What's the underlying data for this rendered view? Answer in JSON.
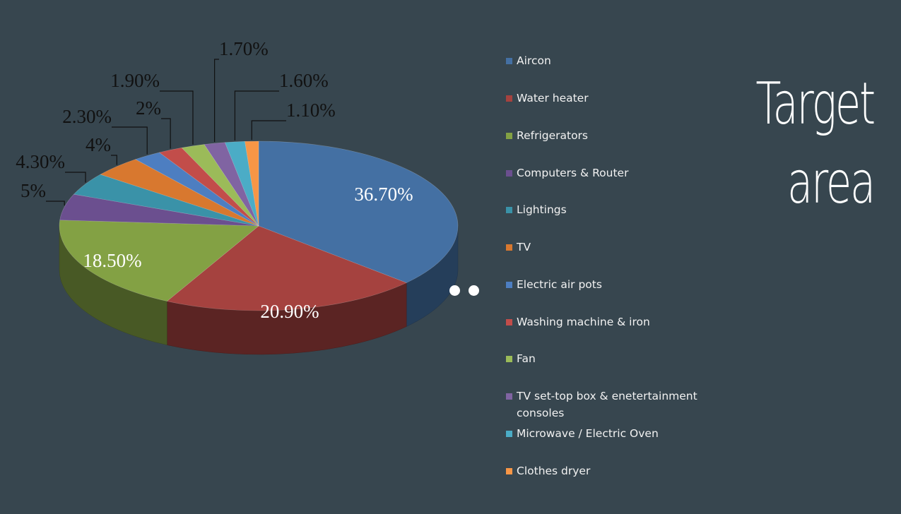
{
  "page": {
    "title": "Target area"
  },
  "chart_data": {
    "type": "pie",
    "title": "",
    "style": "3d-exploded",
    "legend_position": "right",
    "series": [
      {
        "label": "Aircon",
        "value": 36.7,
        "data_label": "36.70%",
        "color": "#4470a3"
      },
      {
        "label": "Water heater",
        "value": 20.9,
        "data_label": "20.90%",
        "color": "#a5423f"
      },
      {
        "label": "Refrigerators",
        "value": 18.5,
        "data_label": "18.50%",
        "color": "#83a144"
      },
      {
        "label": "Computers & Router",
        "value": 5,
        "data_label": "5%",
        "color": "#6b4f8f"
      },
      {
        "label": "Lightings",
        "value": 4.3,
        "data_label": "4.30%",
        "color": "#3a92a8"
      },
      {
        "label": "TV",
        "value": 4,
        "data_label": "4%",
        "color": "#d8782f"
      },
      {
        "label": "Electric air pots",
        "value": 2.3,
        "data_label": "2.30%",
        "color": "#4d7ec1"
      },
      {
        "label": "Washing machine & iron",
        "value": 2,
        "data_label": "2%",
        "color": "#c24d4a"
      },
      {
        "label": "Fan",
        "value": 1.9,
        "data_label": "1.90%",
        "color": "#9bbb59"
      },
      {
        "label": "TV set-top box & enetertainment consoles",
        "value": 1.7,
        "data_label": "1.70%",
        "color": "#8064a2"
      },
      {
        "label": "Microwave / Electric Oven",
        "value": 1.6,
        "data_label": "1.60%",
        "color": "#4bacc6"
      },
      {
        "label": "Clothes dryer",
        "value": 1.1,
        "data_label": "1.10%",
        "color": "#f79646"
      }
    ]
  }
}
